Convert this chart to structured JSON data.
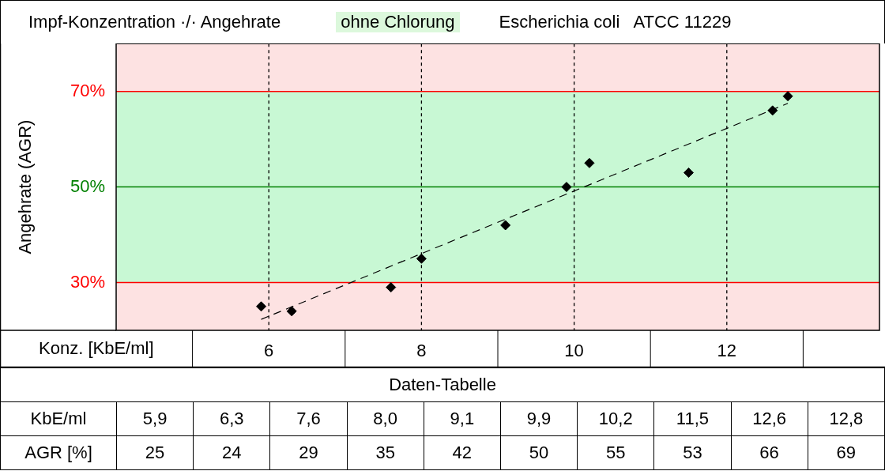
{
  "chart_data": {
    "type": "scatter",
    "title": "Impf-Konzentration ·/· Angehrate",
    "subtitle": "ohne Chlorung",
    "annotations": [
      "Escherichia coli   ATCC 11229",
      "Daten-Tabelle",
      "KbE/ml",
      "AGR [%]",
      "5,9",
      "6,3",
      "7,6",
      "8,0",
      "9,1",
      "9,9",
      "10,2",
      "11,5",
      "12,6",
      "12,8",
      "25",
      "24",
      "29",
      "35",
      "42",
      "50",
      "55",
      "53",
      "66",
      "69"
    ],
    "xlabel": "Konz. [KbE/ml]",
    "ylabel": "Angehrate (AGR)",
    "xlim": [
      4,
      14
    ],
    "xticks": [
      6,
      8,
      10,
      12
    ],
    "ylim": [
      20,
      80
    ],
    "yticks": [
      {
        "value": 30,
        "label": "30%"
      },
      {
        "value": 50,
        "label": "50%"
      },
      {
        "value": 70,
        "label": "70%"
      }
    ],
    "grid": "x",
    "marker": "diamond",
    "bands": [
      {
        "axis": "y",
        "from": 20,
        "to": 30,
        "color": "#fde2e2"
      },
      {
        "axis": "y",
        "from": 30,
        "to": 70,
        "color": "#c8f8d4"
      },
      {
        "axis": "y",
        "from": 70,
        "to": 80,
        "color": "#fde2e2"
      }
    ],
    "ref_lines": [
      {
        "axis": "y",
        "value": 30,
        "color": "#ff0000"
      },
      {
        "axis": "y",
        "value": 50,
        "color": "#008000"
      },
      {
        "axis": "y",
        "value": 70,
        "color": "#ff0000"
      }
    ],
    "series": [
      {
        "color": "#000000",
        "x": [
          5.9,
          6.3,
          7.6,
          8.0,
          9.1,
          9.9,
          10.2,
          11.5,
          12.6,
          12.8
        ],
        "values": [
          25,
          24,
          29,
          35,
          42,
          50,
          55,
          53,
          66,
          69
        ]
      },
      {
        "type": "line",
        "color": "#000000",
        "line_style": "dashed",
        "marker": "none",
        "x": [
          5.9,
          12.8
        ],
        "values": [
          22.3,
          67.5
        ]
      }
    ]
  }
}
